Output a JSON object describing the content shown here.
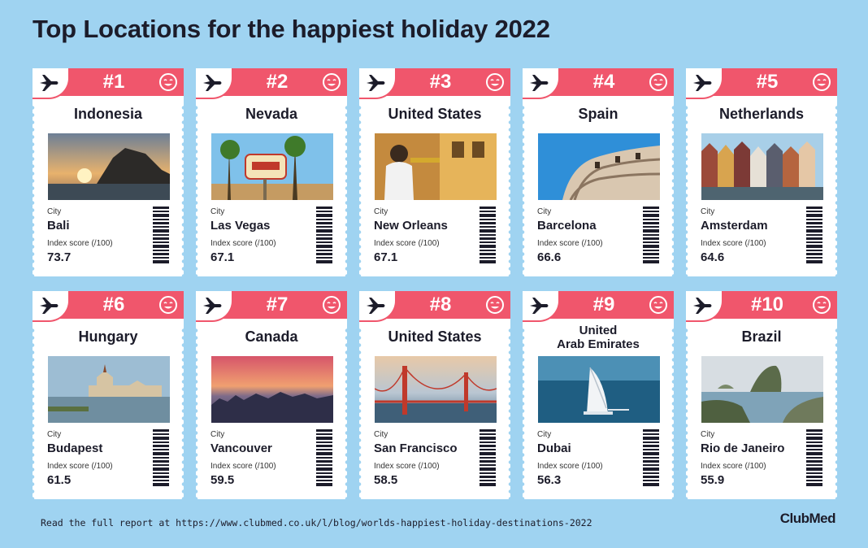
{
  "title": "Top Locations for the happiest holiday 2022",
  "labels": {
    "city": "City",
    "index_score": "Index score (/100)"
  },
  "accent_color": "#f0566c",
  "background_color": "#9fd3f1",
  "icons": [
    "plane-icon",
    "smiley-icon",
    "barcode-icon"
  ],
  "locations": [
    {
      "rank": "#1",
      "country": "Indonesia",
      "city": "Bali",
      "score": "73.7"
    },
    {
      "rank": "#2",
      "country": "Nevada",
      "city": "Las Vegas",
      "score": "67.1"
    },
    {
      "rank": "#3",
      "country": "United States",
      "city": "New Orleans",
      "score": "67.1"
    },
    {
      "rank": "#4",
      "country": "Spain",
      "city": "Barcelona",
      "score": "66.6"
    },
    {
      "rank": "#5",
      "country": "Netherlands",
      "city": "Amsterdam",
      "score": "64.6"
    },
    {
      "rank": "#6",
      "country": "Hungary",
      "city": "Budapest",
      "score": "61.5"
    },
    {
      "rank": "#7",
      "country": "Canada",
      "city": "Vancouver",
      "score": "59.5"
    },
    {
      "rank": "#8",
      "country": "United States",
      "city": "San Francisco",
      "score": "58.5"
    },
    {
      "rank": "#9",
      "country": "United Arab Emirates",
      "country_line1": "United",
      "country_line2": "Arab Emirates",
      "city": "Dubai",
      "score": "56.3"
    },
    {
      "rank": "#10",
      "country": "Brazil",
      "city": "Rio de Janeiro",
      "score": "55.9"
    }
  ],
  "footer": "Read the full report at https://www.clubmed.co.uk/l/blog/worlds-happiest-holiday-destinations-2022",
  "brand": "ClubMed"
}
